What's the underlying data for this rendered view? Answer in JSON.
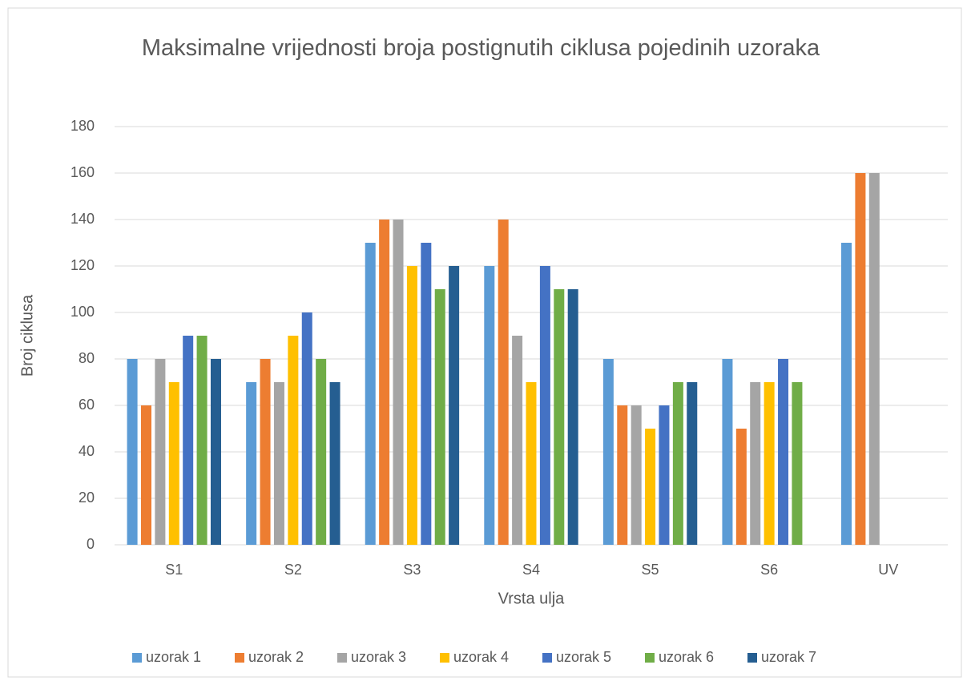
{
  "chart_data": {
    "type": "bar",
    "title": "Maksimalne vrijednosti broja postignutih ciklusa pojedinih uzoraka",
    "x_label": "Vrsta ulja",
    "y_label": "Broj ciklusa",
    "categories": [
      "S1",
      "S2",
      "S3",
      "S4",
      "S5",
      "S6",
      "UV"
    ],
    "series": [
      {
        "name": "uzorak 1",
        "color": "#5b9bd5",
        "values": [
          80,
          70,
          130,
          120,
          80,
          80,
          130
        ]
      },
      {
        "name": "uzorak 2",
        "color": "#ed7d31",
        "values": [
          60,
          80,
          140,
          140,
          60,
          50,
          160
        ]
      },
      {
        "name": "uzorak 3",
        "color": "#a5a5a5",
        "values": [
          80,
          70,
          140,
          90,
          60,
          70,
          160
        ]
      },
      {
        "name": "uzorak 4",
        "color": "#ffc000",
        "values": [
          70,
          90,
          120,
          70,
          50,
          70,
          null
        ]
      },
      {
        "name": "uzorak 5",
        "color": "#4472c4",
        "values": [
          90,
          100,
          130,
          120,
          60,
          80,
          null
        ]
      },
      {
        "name": "uzorak 6",
        "color": "#70ad47",
        "values": [
          90,
          80,
          110,
          110,
          70,
          70,
          null
        ]
      },
      {
        "name": "uzorak 7",
        "color": "#255e91",
        "values": [
          80,
          70,
          120,
          110,
          70,
          null,
          null
        ]
      }
    ],
    "ylim": [
      0,
      180
    ],
    "yticks": [
      0,
      20,
      40,
      60,
      80,
      100,
      120,
      140,
      160,
      180
    ],
    "grid": true,
    "legend": "bottom"
  }
}
